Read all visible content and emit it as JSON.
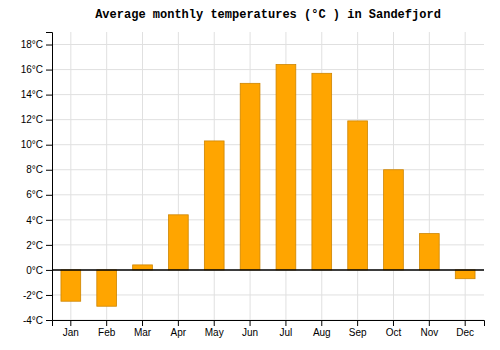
{
  "chart_data": {
    "type": "bar",
    "title": "Average monthly temperatures (°C ) in Sandefjord",
    "categories": [
      "Jan",
      "Feb",
      "Mar",
      "Apr",
      "May",
      "Jun",
      "Jul",
      "Aug",
      "Sep",
      "Oct",
      "Nov",
      "Dec"
    ],
    "values": [
      -2.5,
      -2.9,
      0.4,
      4.4,
      10.3,
      14.9,
      16.4,
      15.7,
      11.9,
      8.0,
      2.9,
      -0.7
    ],
    "color": "#FFA500",
    "ylim": [
      -4,
      19
    ],
    "yticks": [
      {
        "value": -4,
        "label": "-4°C"
      },
      {
        "value": -2,
        "label": "-2°C"
      },
      {
        "value": 0,
        "label": "0°C"
      },
      {
        "value": 2,
        "label": "2°C"
      },
      {
        "value": 4,
        "label": "4°C"
      },
      {
        "value": 6,
        "label": "6°C"
      },
      {
        "value": 8,
        "label": "8°C"
      },
      {
        "value": 10,
        "label": "10°C"
      },
      {
        "value": 12,
        "label": "12°C"
      },
      {
        "value": 14,
        "label": "14°C"
      },
      {
        "value": 16,
        "label": "16°C"
      },
      {
        "value": 18,
        "label": "18°C"
      }
    ],
    "grid": true
  }
}
